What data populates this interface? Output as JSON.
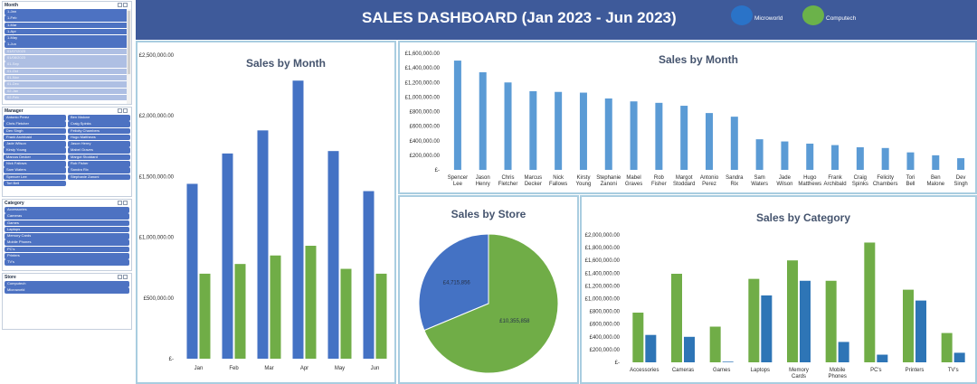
{
  "slicers": {
    "month": {
      "title": "Month",
      "items": [
        "1-Jan",
        "1-Feb",
        "1-Mar",
        "1-Apr",
        "1-May",
        "1-Jun",
        "01/07/2023",
        "01/08/2023",
        "01-Sep",
        "01-Oct",
        "01-Nov",
        "01-Dec",
        "02-Jan",
        "02-Feb"
      ],
      "selected_count": 6
    },
    "manager": {
      "title": "Manager",
      "items": [
        "Antonio Perez",
        "Ben Malone",
        "Chris Fletcher",
        "Craig Spinks",
        "Dev Singh",
        "Felicity Chambers",
        "Frank Archibald",
        "Hugo Matthews",
        "Jade Wilson",
        "Jason Henry",
        "Kirsty Young",
        "Mabel Graves",
        "Marcus Decker",
        "Margot Stoddard",
        "Nick Fallows",
        "Rob Fisher",
        "Sam Waters",
        "Sandra Rix",
        "Spencer Lee",
        "Stephanie Zanoni",
        "Tori Bell"
      ]
    },
    "category": {
      "title": "Category",
      "items": [
        "Accessories",
        "Cameras",
        "Games",
        "Laptops",
        "Memory Cards",
        "Mobile Phones",
        "PC's",
        "Printers",
        "TV's"
      ]
    },
    "store": {
      "title": "Store",
      "items": [
        "Computech",
        "Microworld"
      ]
    }
  },
  "header": {
    "title": "SALES DASHBOARD (Jan 2023 - Jun 2023)",
    "legend": [
      {
        "name": "Microworld",
        "color": "#2a73c8"
      },
      {
        "name": "Computech",
        "color": "#6bb24a"
      }
    ]
  },
  "colors": {
    "microworld": "#4472c4",
    "computech": "#70ad47",
    "bar_blue": "#5b9bd5",
    "cat_blue": "#2e75b6"
  },
  "chart_data": [
    {
      "id": "sales-by-month-store",
      "type": "bar",
      "title": "Sales by Month",
      "categories": [
        "Jan",
        "Feb",
        "Mar",
        "Apr",
        "May",
        "Jun"
      ],
      "series": [
        {
          "name": "Microworld",
          "values": [
            1440000,
            1690000,
            1880000,
            2290000,
            1710000,
            1380000
          ]
        },
        {
          "name": "Computech",
          "values": [
            700000,
            780000,
            850000,
            930000,
            740000,
            700000
          ]
        }
      ],
      "ylim": [
        0,
        2500000
      ],
      "yticks": [
        "£-",
        "£500,000.00",
        "£1,000,000.00",
        "£1,500,000.00",
        "£2,000,000.00",
        "£2,500,000.00"
      ]
    },
    {
      "id": "sales-by-manager",
      "type": "bar",
      "title": "Sales by Month",
      "categories": [
        "Spencer Lee",
        "Jason Henry",
        "Chris Fletcher",
        "Marcus Decker",
        "Nick Fallows",
        "Kirsty Young",
        "Stephanie Zanoni",
        "Mabel Graves",
        "Rob Fisher",
        "Margot Stoddard",
        "Antonio Perez",
        "Sandra Rix",
        "Sam Waters",
        "Jade Wilson",
        "Hugo Matthews",
        "Frank Archibald",
        "Craig Spinks",
        "Felicity Chambers",
        "Tori Bell",
        "Ben Malone",
        "Dev Singh"
      ],
      "values": [
        1500000,
        1340000,
        1200000,
        1080000,
        1070000,
        1060000,
        980000,
        940000,
        920000,
        880000,
        780000,
        730000,
        420000,
        390000,
        360000,
        340000,
        310000,
        300000,
        240000,
        200000,
        160000
      ],
      "ylim": [
        0,
        1600000
      ],
      "yticks": [
        "£-",
        "£200,000.00",
        "£400,000.00",
        "£600,000.00",
        "£800,000.00",
        "£1,000,000.00",
        "£1,200,000.00",
        "£1,400,000.00",
        "£1,600,000.00"
      ]
    },
    {
      "id": "sales-by-store",
      "type": "pie",
      "title": "Sales by Store",
      "slices": [
        {
          "name": "Microworld",
          "value": 4715856,
          "label": "£4,715,856"
        },
        {
          "name": "Computech",
          "value": 10355858,
          "label": "£10,355,858"
        }
      ]
    },
    {
      "id": "sales-by-category",
      "type": "bar",
      "title": "Sales by Category",
      "categories": [
        "Accessories",
        "Cameras",
        "Games",
        "Laptops",
        "Memory Cards",
        "Mobile Phones",
        "PC's",
        "Printers",
        "TV's"
      ],
      "series": [
        {
          "name": "Computech",
          "values": [
            780000,
            1390000,
            560000,
            1310000,
            1600000,
            1280000,
            1880000,
            1140000,
            460000
          ]
        },
        {
          "name": "Microworld",
          "values": [
            430000,
            400000,
            10000,
            1050000,
            1280000,
            320000,
            120000,
            970000,
            150000
          ]
        }
      ],
      "ylim": [
        0,
        2000000
      ],
      "yticks": [
        "£-",
        "£200,000.00",
        "£400,000.00",
        "£600,000.00",
        "£800,000.00",
        "£1,000,000.00",
        "£1,200,000.00",
        "£1,400,000.00",
        "£1,600,000.00",
        "£1,800,000.00",
        "£2,000,000.00"
      ]
    }
  ]
}
